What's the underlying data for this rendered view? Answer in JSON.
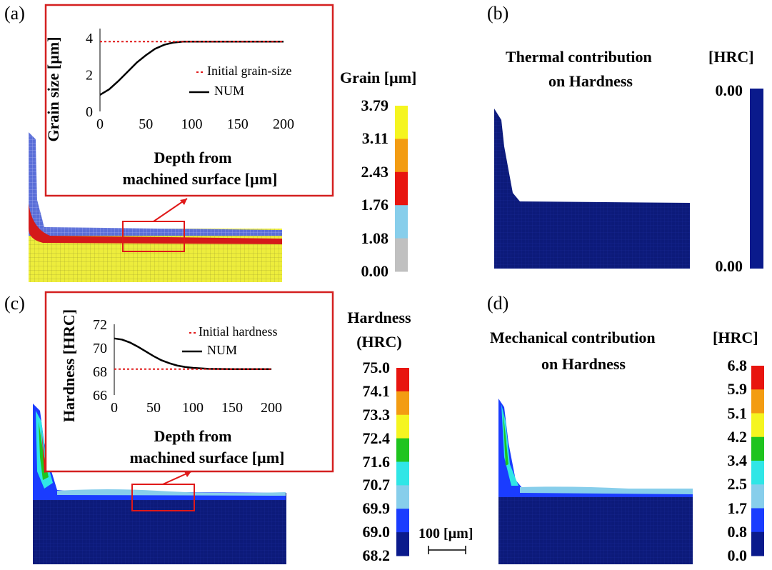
{
  "panels": {
    "a": {
      "label": "(a)",
      "colorbar": {
        "title": "Grain [µm]",
        "ticks": [
          "3.79",
          "3.11",
          "2.43",
          "1.76",
          "1.08",
          "0.00"
        ],
        "colors": [
          "#f5f520",
          "#f39c12",
          "#e8150f",
          "#87ceeb",
          "#c0c0c0"
        ]
      },
      "inset": {
        "ylabel": "Grain size [µm]",
        "xlabel_line1": "Depth from",
        "xlabel_line2": "machined surface [µm]",
        "yticks": [
          "4",
          "2",
          "0"
        ],
        "xticks": [
          "0",
          "50",
          "100",
          "150",
          "200"
        ],
        "legend_dotted": "Initial grain-size",
        "legend_solid": "NUM"
      }
    },
    "b": {
      "label": "(b)",
      "title_line1": "Thermal contribution",
      "title_line2": "on Hardness",
      "unit": "[HRC]",
      "colorbar": {
        "top": "0.00",
        "bottom": "0.00",
        "color": "#0a1a8c"
      }
    },
    "c": {
      "label": "(c)",
      "colorbar": {
        "title_line1": "Hardness",
        "title_line2": "(HRC)",
        "ticks": [
          "75.0",
          "74.1",
          "73.3",
          "72.4",
          "71.6",
          "70.7",
          "69.9",
          "69.0",
          "68.2"
        ],
        "colors": [
          "#e8150f",
          "#f39c12",
          "#f5f520",
          "#1fc41f",
          "#30e6e6",
          "#87ceeb",
          "#1a3cff",
          "#0a1a8c"
        ]
      },
      "inset": {
        "ylabel": "Hardness [HRC]",
        "xlabel_line1": "Depth from",
        "xlabel_line2": "machined surface [µm]",
        "yticks": [
          "72",
          "70",
          "68",
          "66"
        ],
        "xticks": [
          "0",
          "50",
          "100",
          "150",
          "200"
        ],
        "legend_dotted": "Initial hardness",
        "legend_solid": "NUM"
      },
      "scalebar": "100 [µm]"
    },
    "d": {
      "label": "(d)",
      "title_line1": "Mechanical contribution",
      "title_line2": "on Hardness",
      "unit": "[HRC]",
      "colorbar": {
        "ticks": [
          "6.8",
          "5.9",
          "5.1",
          "4.2",
          "3.4",
          "2.5",
          "1.7",
          "0.8",
          "0.0"
        ],
        "colors": [
          "#e8150f",
          "#f39c12",
          "#f5f520",
          "#1fc41f",
          "#30e6e6",
          "#87ceeb",
          "#1a3cff",
          "#0a1a8c"
        ]
      }
    }
  },
  "chart_data": [
    {
      "type": "line",
      "title": "",
      "xlabel": "Depth from machined surface [µm]",
      "ylabel": "Grain size [µm]",
      "xlim": [
        0,
        200
      ],
      "ylim": [
        0,
        4.5
      ],
      "series": [
        {
          "name": "NUM",
          "x": [
            0,
            10,
            20,
            30,
            40,
            50,
            60,
            70,
            80,
            90,
            100,
            120,
            150,
            200
          ],
          "y": [
            0.9,
            1.2,
            1.65,
            2.15,
            2.65,
            3.05,
            3.4,
            3.62,
            3.74,
            3.79,
            3.79,
            3.79,
            3.79,
            3.79
          ]
        },
        {
          "name": "Initial grain-size",
          "x": [
            0,
            200
          ],
          "y": [
            3.79,
            3.79
          ]
        }
      ]
    },
    {
      "type": "line",
      "title": "",
      "xlabel": "Depth from machined surface [µm]",
      "ylabel": "Hardness [HRC]",
      "xlim": [
        0,
        200
      ],
      "ylim": [
        66,
        72
      ],
      "series": [
        {
          "name": "NUM",
          "x": [
            0,
            10,
            20,
            30,
            40,
            50,
            60,
            70,
            80,
            90,
            100,
            120,
            150,
            200
          ],
          "y": [
            70.8,
            70.7,
            70.45,
            70.1,
            69.7,
            69.3,
            68.95,
            68.7,
            68.5,
            68.38,
            68.3,
            68.22,
            68.2,
            68.2
          ]
        },
        {
          "name": "Initial hardness",
          "x": [
            0,
            200
          ],
          "y": [
            68.2,
            68.2
          ]
        }
      ]
    }
  ]
}
